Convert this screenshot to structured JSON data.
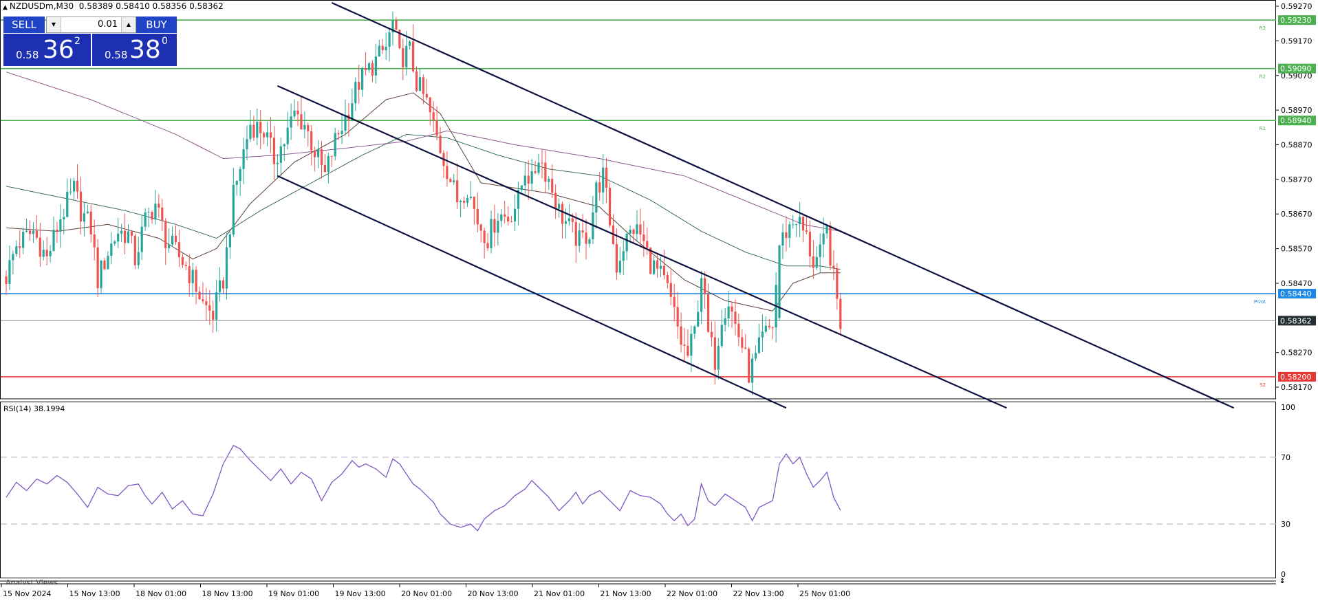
{
  "header": {
    "symbol": "NZDUSDm,M30",
    "ohlc": "0.58389 0.58410 0.58356 0.58362"
  },
  "trade_panel": {
    "sell_label": "SELL",
    "buy_label": "BUY",
    "lot": "0.01",
    "sell_prefix": "0.58",
    "sell_big": "36",
    "sell_sup": "2",
    "buy_prefix": "0.58",
    "buy_big": "38",
    "buy_sup": "0"
  },
  "analyst_label": "Analyst Views",
  "colors": {
    "bull": "#26a69a",
    "bear": "#ef5350",
    "resistance": "#4caf50",
    "pivot": "#1e88e5",
    "support": "#e53935",
    "channel": "#0d1040",
    "rsi": "#7e57c2",
    "ma_fast": "#5d4037",
    "ma_mid": "#3b6e5c",
    "ma_slow": "#8e5a8e"
  },
  "chart_data": {
    "type": "candlestick",
    "symbol": "NZDUSDm",
    "timeframe": "M30",
    "ylim": [
      0.5812,
      0.5928
    ],
    "price_ticks": [
      "0.59270",
      "0.59170",
      "0.59070",
      "0.58970",
      "0.58870",
      "0.58770",
      "0.58670",
      "0.58570",
      "0.58470",
      "0.58270",
      "0.58170"
    ],
    "x_labels": [
      "15 Nov 2024",
      "15 Nov 13:00",
      "18 Nov 01:00",
      "18 Nov 13:00",
      "19 Nov 01:00",
      "19 Nov 13:00",
      "20 Nov 01:00",
      "20 Nov 13:00",
      "21 Nov 01:00",
      "21 Nov 13:00",
      "22 Nov 01:00",
      "22 Nov 13:00",
      "25 Nov 01:00"
    ],
    "levels": [
      {
        "tag": "R3",
        "price": 0.5923,
        "label": "0.59230",
        "kind": "resistance"
      },
      {
        "tag": "R2",
        "price": 0.5909,
        "label": "0.59090",
        "kind": "resistance"
      },
      {
        "tag": "R1",
        "price": 0.5894,
        "label": "0.58940",
        "kind": "resistance"
      },
      {
        "tag": "Pivot",
        "price": 0.5844,
        "label": "0.58440",
        "kind": "pivot"
      },
      {
        "tag": "S2",
        "price": 0.582,
        "label": "0.58200",
        "kind": "support"
      }
    ],
    "current_price": {
      "value": 0.58362,
      "label": "0.58362"
    },
    "close_path": [
      [
        0,
        0.5849
      ],
      [
        3,
        0.5858
      ],
      [
        8,
        0.5862
      ],
      [
        12,
        0.5854
      ],
      [
        16,
        0.5866
      ],
      [
        20,
        0.5874
      ],
      [
        22,
        0.5868
      ],
      [
        25,
        0.5863
      ],
      [
        27,
        0.5848
      ],
      [
        30,
        0.5856
      ],
      [
        33,
        0.5862
      ],
      [
        36,
        0.5861
      ],
      [
        38,
        0.5854
      ],
      [
        41,
        0.5865
      ],
      [
        44,
        0.587
      ],
      [
        47,
        0.586
      ],
      [
        50,
        0.5856
      ],
      [
        53,
        0.5852
      ],
      [
        56,
        0.5846
      ],
      [
        58,
        0.5841
      ],
      [
        61,
        0.5838
      ],
      [
        64,
        0.5848
      ],
      [
        67,
        0.5872
      ],
      [
        70,
        0.5885
      ],
      [
        72,
        0.5893
      ],
      [
        76,
        0.5891
      ],
      [
        79,
        0.5883
      ],
      [
        82,
        0.5888
      ],
      [
        85,
        0.5896
      ],
      [
        88,
        0.5893
      ],
      [
        91,
        0.5885
      ],
      [
        94,
        0.5878
      ],
      [
        97,
        0.5888
      ],
      [
        100,
        0.5895
      ],
      [
        104,
        0.5905
      ],
      [
        108,
        0.591
      ],
      [
        112,
        0.5915
      ],
      [
        114,
        0.5922
      ],
      [
        116,
        0.5912
      ],
      [
        119,
        0.5914
      ],
      [
        121,
        0.5905
      ],
      [
        124,
        0.5899
      ],
      [
        127,
        0.5889
      ],
      [
        130,
        0.588
      ],
      [
        133,
        0.5871
      ],
      [
        136,
        0.5875
      ],
      [
        139,
        0.5865
      ],
      [
        142,
        0.586
      ],
      [
        145,
        0.5867
      ],
      [
        148,
        0.5866
      ],
      [
        151,
        0.5871
      ],
      [
        153,
        0.588
      ],
      [
        155,
        0.5876
      ],
      [
        157,
        0.5884
      ],
      [
        160,
        0.5877
      ],
      [
        163,
        0.5868
      ],
      [
        166,
        0.5863
      ],
      [
        169,
        0.5859
      ],
      [
        172,
        0.5862
      ],
      [
        174,
        0.5874
      ],
      [
        176,
        0.5878
      ],
      [
        178,
        0.5865
      ],
      [
        180,
        0.5852
      ],
      [
        182,
        0.5858
      ],
      [
        185,
        0.5863
      ],
      [
        187,
        0.5861
      ],
      [
        190,
        0.5853
      ],
      [
        193,
        0.5849
      ],
      [
        195,
        0.5845
      ],
      [
        197,
        0.5838
      ],
      [
        199,
        0.583
      ],
      [
        201,
        0.5826
      ],
      [
        203,
        0.5833
      ],
      [
        205,
        0.585
      ],
      [
        207,
        0.5832
      ],
      [
        209,
        0.5825
      ],
      [
        211,
        0.5838
      ],
      [
        213,
        0.5842
      ],
      [
        215,
        0.5835
      ],
      [
        217,
        0.5829
      ],
      [
        219,
        0.5821
      ],
      [
        221,
        0.5825
      ],
      [
        223,
        0.5831
      ],
      [
        226,
        0.5835
      ],
      [
        228,
        0.5858
      ],
      [
        230,
        0.5862
      ],
      [
        233,
        0.5866
      ],
      [
        236,
        0.586
      ],
      [
        238,
        0.5853
      ],
      [
        240,
        0.5855
      ],
      [
        242,
        0.5862
      ],
      [
        244,
        0.5848
      ],
      [
        246,
        0.5836
      ]
    ],
    "gaps": [
      [
        226,
        228,
        0.5837,
        0.585
      ]
    ],
    "moving_averages": [
      {
        "id": "ma_fast",
        "points": [
          [
            0,
            0.5863
          ],
          [
            15,
            0.5862
          ],
          [
            30,
            0.5864
          ],
          [
            45,
            0.586
          ],
          [
            55,
            0.5854
          ],
          [
            62,
            0.5857
          ],
          [
            72,
            0.587
          ],
          [
            85,
            0.5882
          ],
          [
            100,
            0.589
          ],
          [
            112,
            0.59
          ],
          [
            120,
            0.5902
          ],
          [
            128,
            0.5896
          ],
          [
            140,
            0.5876
          ],
          [
            160,
            0.5873
          ],
          [
            175,
            0.5869
          ],
          [
            185,
            0.586
          ],
          [
            200,
            0.5848
          ],
          [
            212,
            0.5842
          ],
          [
            226,
            0.5839
          ],
          [
            232,
            0.5847
          ],
          [
            240,
            0.585
          ],
          [
            246,
            0.585
          ]
        ]
      },
      {
        "id": "ma_mid",
        "points": [
          [
            0,
            0.5875
          ],
          [
            15,
            0.5872
          ],
          [
            35,
            0.5868
          ],
          [
            50,
            0.5864
          ],
          [
            62,
            0.586
          ],
          [
            75,
            0.5868
          ],
          [
            90,
            0.5876
          ],
          [
            105,
            0.5884
          ],
          [
            118,
            0.589
          ],
          [
            130,
            0.5889
          ],
          [
            145,
            0.5884
          ],
          [
            160,
            0.588
          ],
          [
            175,
            0.5878
          ],
          [
            190,
            0.5871
          ],
          [
            205,
            0.5862
          ],
          [
            218,
            0.5856
          ],
          [
            230,
            0.5852
          ],
          [
            240,
            0.5852
          ],
          [
            246,
            0.5851
          ]
        ]
      },
      {
        "id": "ma_slow",
        "points": [
          [
            0,
            0.5908
          ],
          [
            25,
            0.59
          ],
          [
            50,
            0.589
          ],
          [
            64,
            0.5883
          ],
          [
            80,
            0.5884
          ],
          [
            100,
            0.5886
          ],
          [
            118,
            0.5888
          ],
          [
            130,
            0.5891
          ],
          [
            150,
            0.5887
          ],
          [
            175,
            0.5883
          ],
          [
            200,
            0.5878
          ],
          [
            220,
            0.587
          ],
          [
            235,
            0.5864
          ],
          [
            246,
            0.5862
          ]
        ]
      }
    ],
    "channel_lines": [
      {
        "x1": 96,
        "y1": 0.5928,
        "x2": 362,
        "y2": 0.5811
      },
      {
        "x1": 80,
        "y1": 0.5904,
        "x2": 295,
        "y2": 0.5811
      },
      {
        "x1": 80,
        "y1": 0.5878,
        "x2": 230,
        "y2": 0.5811
      }
    ],
    "rsi": {
      "label": "RSI(14) 38.1994",
      "period": 14,
      "value": 38.1994,
      "ylim": [
        0,
        100
      ],
      "ticks": [
        "100",
        "70",
        "30",
        "0"
      ],
      "levels": [
        70,
        30
      ],
      "points": [
        [
          0,
          46
        ],
        [
          3,
          55
        ],
        [
          6,
          50
        ],
        [
          9,
          57
        ],
        [
          12,
          54
        ],
        [
          15,
          59
        ],
        [
          18,
          55
        ],
        [
          21,
          48
        ],
        [
          24,
          40
        ],
        [
          27,
          52
        ],
        [
          30,
          48
        ],
        [
          33,
          47
        ],
        [
          36,
          53
        ],
        [
          39,
          54
        ],
        [
          41,
          47
        ],
        [
          43,
          42
        ],
        [
          46,
          49
        ],
        [
          49,
          39
        ],
        [
          52,
          44
        ],
        [
          55,
          36
        ],
        [
          58,
          35
        ],
        [
          61,
          48
        ],
        [
          64,
          66
        ],
        [
          67,
          77
        ],
        [
          69,
          75
        ],
        [
          72,
          68
        ],
        [
          75,
          62
        ],
        [
          78,
          56
        ],
        [
          81,
          63
        ],
        [
          84,
          54
        ],
        [
          87,
          61
        ],
        [
          90,
          57
        ],
        [
          93,
          44
        ],
        [
          96,
          55
        ],
        [
          99,
          60
        ],
        [
          102,
          68
        ],
        [
          104,
          64
        ],
        [
          106,
          66
        ],
        [
          109,
          63
        ],
        [
          112,
          58
        ],
        [
          114,
          69
        ],
        [
          116,
          66
        ],
        [
          118,
          60
        ],
        [
          120,
          54
        ],
        [
          122,
          51
        ],
        [
          124,
          47
        ],
        [
          126,
          43
        ],
        [
          128,
          36
        ],
        [
          131,
          30
        ],
        [
          134,
          28
        ],
        [
          137,
          30
        ],
        [
          139,
          26
        ],
        [
          141,
          33
        ],
        [
          144,
          38
        ],
        [
          147,
          41
        ],
        [
          150,
          47
        ],
        [
          153,
          51
        ],
        [
          155,
          56
        ],
        [
          157,
          52
        ],
        [
          160,
          46
        ],
        [
          163,
          38
        ],
        [
          166,
          44
        ],
        [
          168,
          49
        ],
        [
          170,
          42
        ],
        [
          172,
          47
        ],
        [
          175,
          50
        ],
        [
          178,
          44
        ],
        [
          181,
          38
        ],
        [
          184,
          50
        ],
        [
          187,
          47
        ],
        [
          190,
          46
        ],
        [
          193,
          42
        ],
        [
          195,
          36
        ],
        [
          197,
          32
        ],
        [
          199,
          36
        ],
        [
          201,
          29
        ],
        [
          203,
          33
        ],
        [
          205,
          54
        ],
        [
          207,
          44
        ],
        [
          209,
          41
        ],
        [
          212,
          48
        ],
        [
          215,
          44
        ],
        [
          218,
          40
        ],
        [
          220,
          32
        ],
        [
          222,
          40
        ],
        [
          224,
          42
        ],
        [
          226,
          44
        ],
        [
          228,
          66
        ],
        [
          230,
          72
        ],
        [
          232,
          66
        ],
        [
          234,
          70
        ],
        [
          236,
          60
        ],
        [
          238,
          52
        ],
        [
          240,
          56
        ],
        [
          242,
          61
        ],
        [
          244,
          46
        ],
        [
          246,
          38.2
        ]
      ]
    }
  }
}
